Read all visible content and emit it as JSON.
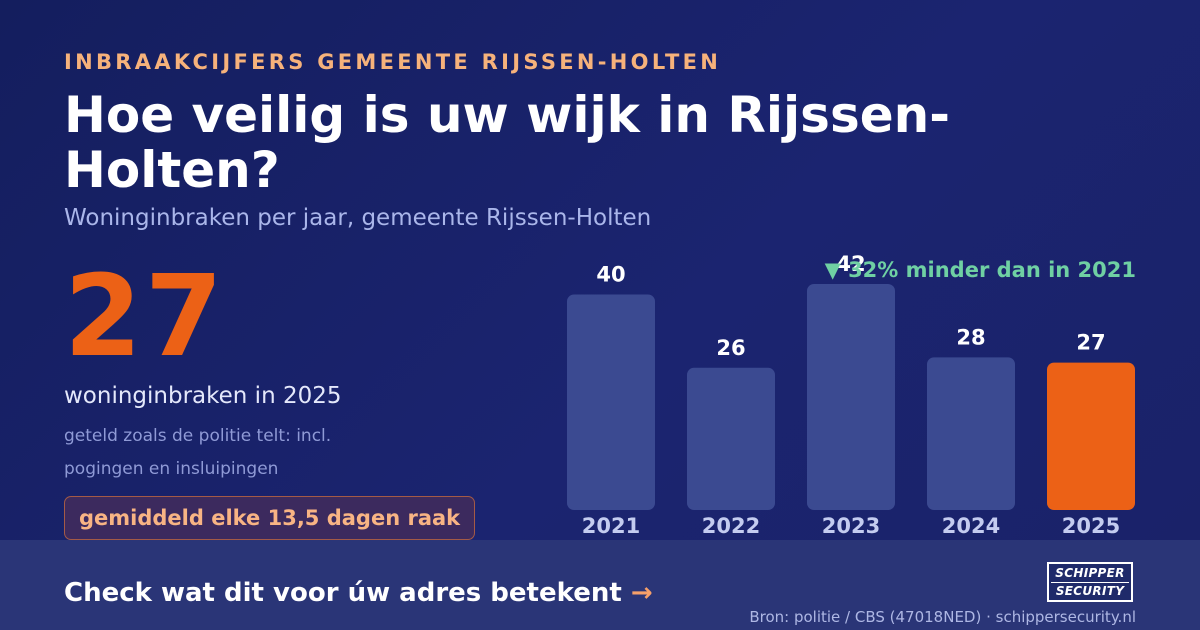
{
  "header": {
    "eyebrow": "INBRAAKCIJFERS GEMEENTE RIJSSEN-HOLTEN",
    "title": "Hoe veilig is uw wijk in Rijssen-Holten?",
    "subtitle": "Woninginbraken per jaar, gemeente Rijssen-Holten"
  },
  "highlight": {
    "number": "27",
    "label": "woninginbraken in 2025",
    "note": "geteld zoals de politie telt: incl. pogingen en insluipingen",
    "pill": "gemiddeld elke 13,5 dagen raak"
  },
  "chart_data": {
    "type": "bar",
    "title": "",
    "xlabel": "",
    "ylabel": "",
    "categories": [
      "2021",
      "2022",
      "2023",
      "2024",
      "2025"
    ],
    "values": [
      40,
      26,
      42,
      28,
      27
    ],
    "ylim": [
      0,
      42
    ],
    "grid": false,
    "annotation": "▼ 32% minder dan in 2021",
    "colors": {
      "bar": "#3b4a91",
      "highlight_bar": "#ec6116",
      "highlight_category": "2025",
      "value_label": "#ffffff",
      "tick_label": "#c4ccf0",
      "annotation": "#6fd0a3"
    }
  },
  "footer": {
    "cta": "Check wat dit voor úw adres betekent",
    "cta_arrow": "→",
    "logo_line1": "SCHIPPER",
    "logo_line2": "SECURITY",
    "source": "Bron: politie / CBS (47018NED) · schippersecurity.nl"
  }
}
